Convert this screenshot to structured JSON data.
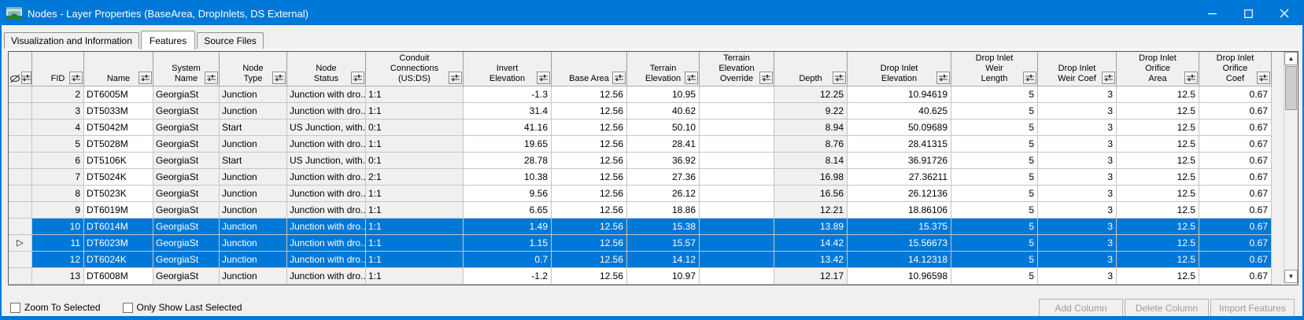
{
  "window": {
    "title": "Nodes - Layer Properties (BaseArea, DropInlets, DS External)"
  },
  "tabs": [
    {
      "label": "Visualization and Information",
      "selected": false
    },
    {
      "label": "Features",
      "selected": true
    },
    {
      "label": "Source Files",
      "selected": false
    }
  ],
  "icons": {
    "app_icon": "bridge-culvert-app-icon",
    "hide_icon": "hide-features-eye-slash-icon",
    "filter_icon": "column-filter-icon",
    "current_row_marker": "right-pointing-triangle",
    "scroll_up": "▲",
    "scroll_down": "▼",
    "window_controls": [
      "minimize",
      "maximize",
      "close"
    ]
  },
  "colors": {
    "titlebar": "#0078d7",
    "selection": "#0078d7",
    "selected_text": "#ffffff",
    "header_bg": "#f0f0f0",
    "readonly_cell_bg": "#f0f0f0",
    "editable_cell_bg": "#ffffff"
  },
  "table": {
    "columns": [
      {
        "key": "row-selector",
        "label": "",
        "align": "center",
        "editable": false
      },
      {
        "key": "fid",
        "label": "FID",
        "align": "right",
        "editable": false
      },
      {
        "key": "name",
        "label": "Name",
        "align": "left",
        "editable": true
      },
      {
        "key": "system-name",
        "label": "System\nName",
        "align": "left",
        "editable": false
      },
      {
        "key": "node-type",
        "label": "Node\nType",
        "align": "left",
        "editable": false
      },
      {
        "key": "node-status",
        "label": "Node\nStatus",
        "align": "left",
        "editable": false
      },
      {
        "key": "conduit-connections",
        "label": "Conduit\nConnections\n(US:DS)",
        "align": "left",
        "editable": false
      },
      {
        "key": "invert-elevation",
        "label": "Invert\nElevation",
        "align": "right",
        "editable": true
      },
      {
        "key": "base-area",
        "label": "Base Area",
        "align": "right",
        "editable": true
      },
      {
        "key": "terrain-elevation",
        "label": "Terrain\nElevation",
        "align": "right",
        "editable": true
      },
      {
        "key": "terrain-elevation-override",
        "label": "Terrain\nElevation\nOverride",
        "align": "right",
        "editable": true
      },
      {
        "key": "depth",
        "label": "Depth",
        "align": "right",
        "editable": false
      },
      {
        "key": "drop-inlet-elevation",
        "label": "Drop Inlet\nElevation",
        "align": "right",
        "editable": true
      },
      {
        "key": "drop-inlet-weir-length",
        "label": "Drop Inlet\nWeir\nLength",
        "align": "right",
        "editable": true
      },
      {
        "key": "drop-inlet-weir-coef",
        "label": "Drop Inlet\nWeir Coef",
        "align": "right",
        "editable": true
      },
      {
        "key": "drop-inlet-orifice-area",
        "label": "Drop Inlet\nOrifice\nArea",
        "align": "right",
        "editable": true
      },
      {
        "key": "drop-inlet-orifice-coef",
        "label": "Drop Inlet\nOrifice\nCoef",
        "align": "right",
        "editable": true
      }
    ],
    "rows": [
      {
        "selected": false,
        "current": false,
        "cells": [
          "2",
          "DT6005M",
          "GeorgiaSt",
          "Junction",
          "Junction with dro...",
          "1:1",
          "-1.3",
          "12.56",
          "10.95",
          "",
          "12.25",
          "10.94619",
          "5",
          "3",
          "12.5",
          "0.67"
        ]
      },
      {
        "selected": false,
        "current": false,
        "cells": [
          "3",
          "DT5033M",
          "GeorgiaSt",
          "Junction",
          "Junction with dro...",
          "1:1",
          "31.4",
          "12.56",
          "40.62",
          "",
          "9.22",
          "40.625",
          "5",
          "3",
          "12.5",
          "0.67"
        ]
      },
      {
        "selected": false,
        "current": false,
        "cells": [
          "4",
          "DT5042M",
          "GeorgiaSt",
          "Start",
          "US Junction, with...",
          "0:1",
          "41.16",
          "12.56",
          "50.10",
          "",
          "8.94",
          "50.09689",
          "5",
          "3",
          "12.5",
          "0.67"
        ]
      },
      {
        "selected": false,
        "current": false,
        "cells": [
          "5",
          "DT5028M",
          "GeorgiaSt",
          "Junction",
          "Junction with dro...",
          "1:1",
          "19.65",
          "12.56",
          "28.41",
          "",
          "8.76",
          "28.41315",
          "5",
          "3",
          "12.5",
          "0.67"
        ]
      },
      {
        "selected": false,
        "current": false,
        "cells": [
          "6",
          "DT5106K",
          "GeorgiaSt",
          "Start",
          "US Junction, with...",
          "0:1",
          "28.78",
          "12.56",
          "36.92",
          "",
          "8.14",
          "36.91726",
          "5",
          "3",
          "12.5",
          "0.67"
        ]
      },
      {
        "selected": false,
        "current": false,
        "cells": [
          "7",
          "DT5024K",
          "GeorgiaSt",
          "Junction",
          "Junction with dro...",
          "2:1",
          "10.38",
          "12.56",
          "27.36",
          "",
          "16.98",
          "27.36211",
          "5",
          "3",
          "12.5",
          "0.67"
        ]
      },
      {
        "selected": false,
        "current": false,
        "cells": [
          "8",
          "DT5023K",
          "GeorgiaSt",
          "Junction",
          "Junction with dro...",
          "1:1",
          "9.56",
          "12.56",
          "26.12",
          "",
          "16.56",
          "26.12136",
          "5",
          "3",
          "12.5",
          "0.67"
        ]
      },
      {
        "selected": false,
        "current": false,
        "cells": [
          "9",
          "DT6019M",
          "GeorgiaSt",
          "Junction",
          "Junction with dro...",
          "1:1",
          "6.65",
          "12.56",
          "18.86",
          "",
          "12.21",
          "18.86106",
          "5",
          "3",
          "12.5",
          "0.67"
        ]
      },
      {
        "selected": true,
        "current": false,
        "cells": [
          "10",
          "DT6014M",
          "GeorgiaSt",
          "Junction",
          "Junction with dro...",
          "1:1",
          "1.49",
          "12.56",
          "15.38",
          "",
          "13.89",
          "15.375",
          "5",
          "3",
          "12.5",
          "0.67"
        ]
      },
      {
        "selected": true,
        "current": true,
        "cells": [
          "11",
          "DT6023M",
          "GeorgiaSt",
          "Junction",
          "Junction with dro...",
          "1:1",
          "1.15",
          "12.56",
          "15.57",
          "",
          "14.42",
          "15.56673",
          "5",
          "3",
          "12.5",
          "0.67"
        ]
      },
      {
        "selected": true,
        "current": false,
        "cells": [
          "12",
          "DT6024K",
          "GeorgiaSt",
          "Junction",
          "Junction with dro...",
          "1:1",
          "0.7",
          "12.56",
          "14.12",
          "",
          "13.42",
          "14.12318",
          "5",
          "3",
          "12.5",
          "0.67"
        ]
      },
      {
        "selected": false,
        "current": false,
        "cells": [
          "13",
          "DT6008M",
          "GeorgiaSt",
          "Junction",
          "Junction with dro...",
          "1:1",
          "-1.2",
          "12.56",
          "10.97",
          "",
          "12.17",
          "10.96598",
          "5",
          "3",
          "12.5",
          "0.67"
        ]
      }
    ]
  },
  "footer": {
    "checkboxes": [
      {
        "label": "Zoom To Selected",
        "checked": false
      },
      {
        "label": "Only Show Last Selected",
        "checked": false
      }
    ],
    "buttons": [
      {
        "label": "Add Column",
        "enabled": false
      },
      {
        "label": "Delete Column",
        "enabled": false
      },
      {
        "label": "Import Features",
        "enabled": false
      }
    ]
  }
}
